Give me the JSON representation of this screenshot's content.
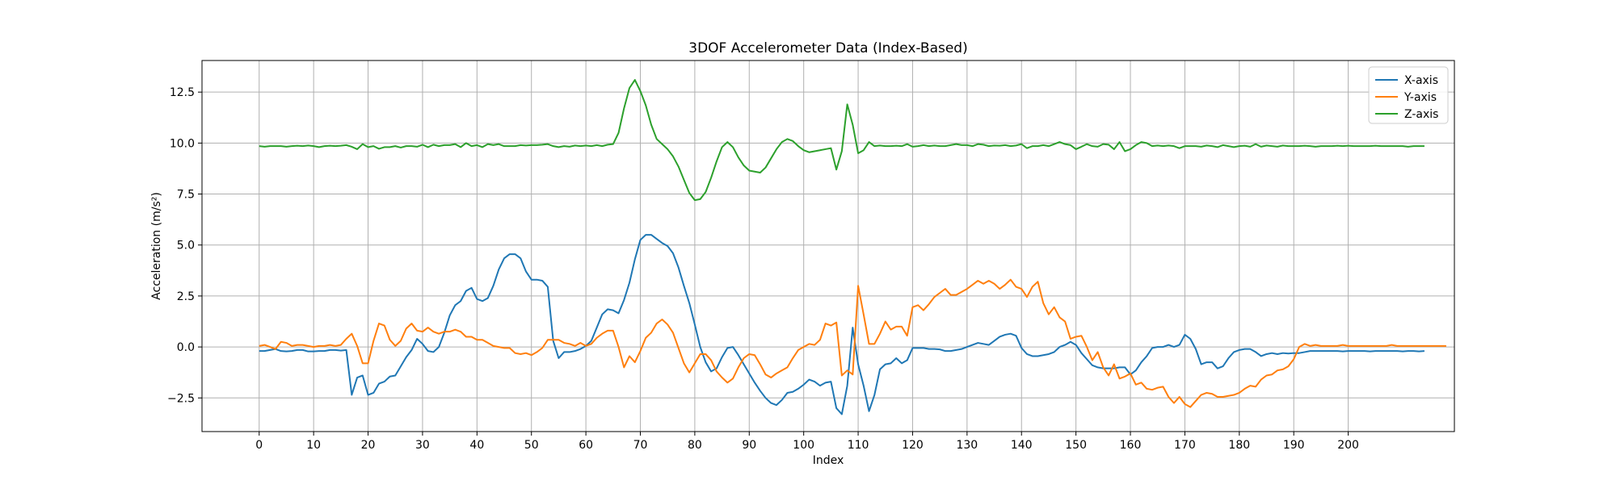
{
  "chart_data": {
    "type": "line",
    "title": "3DOF Accelerometer Data (Index-Based)",
    "xlabel": "Index",
    "ylabel": "Acceleration (m/s²)",
    "xlim": [
      -10.5,
      219.5
    ],
    "ylim": [
      -4.15,
      14.05
    ],
    "xticks": [
      0,
      10,
      20,
      30,
      40,
      50,
      60,
      70,
      80,
      90,
      100,
      110,
      120,
      130,
      140,
      150,
      160,
      170,
      180,
      190,
      200
    ],
    "yticks": [
      -2.5,
      0.0,
      2.5,
      5.0,
      7.5,
      10.0,
      12.5
    ],
    "ytick_labels": [
      "−2.5",
      "0.0",
      "2.5",
      "5.0",
      "7.5",
      "10.0",
      "12.5"
    ],
    "grid": true,
    "legend_position": "top-right",
    "series": [
      {
        "name": "X-axis",
        "color": "#1f77b4",
        "values": [
          -0.2,
          -0.2,
          -0.15,
          -0.1,
          -0.2,
          -0.22,
          -0.2,
          -0.15,
          -0.15,
          -0.22,
          -0.22,
          -0.2,
          -0.2,
          -0.15,
          -0.15,
          -0.18,
          -0.15,
          -2.35,
          -1.5,
          -1.4,
          -2.35,
          -2.25,
          -1.8,
          -1.7,
          -1.45,
          -1.4,
          -0.95,
          -0.5,
          -0.15,
          0.4,
          0.15,
          -0.2,
          -0.25,
          0.0,
          0.7,
          1.55,
          2.05,
          2.25,
          2.75,
          2.9,
          2.35,
          2.25,
          2.4,
          3.0,
          3.8,
          4.35,
          4.55,
          4.55,
          4.35,
          3.7,
          3.3,
          3.3,
          3.25,
          2.95,
          0.3,
          -0.55,
          -0.25,
          -0.25,
          -0.2,
          -0.1,
          0.05,
          0.3,
          0.95,
          1.6,
          1.85,
          1.8,
          1.65,
          2.3,
          3.15,
          4.3,
          5.25,
          5.5,
          5.5,
          5.3,
          5.1,
          4.95,
          4.6,
          3.9,
          3.0,
          2.15,
          1.1,
          0.0,
          -0.75,
          -1.2,
          -1.05,
          -0.5,
          -0.05,
          0.0,
          -0.4,
          -0.85,
          -1.3,
          -1.75,
          -2.15,
          -2.5,
          -2.75,
          -2.85,
          -2.6,
          -2.25,
          -2.2,
          -2.05,
          -1.85,
          -1.6,
          -1.7,
          -1.9,
          -1.75,
          -1.7,
          -3.0,
          -3.3,
          -1.9,
          0.95,
          -0.85,
          -1.9,
          -3.15,
          -2.35,
          -1.1,
          -0.85,
          -0.8,
          -0.55,
          -0.8,
          -0.65,
          -0.05,
          -0.05,
          -0.05,
          -0.1,
          -0.1,
          -0.12,
          -0.2,
          -0.2,
          -0.15,
          -0.1,
          0.0,
          0.1,
          0.2,
          0.15,
          0.1,
          0.3,
          0.5,
          0.6,
          0.65,
          0.55,
          -0.05,
          -0.35,
          -0.45,
          -0.45,
          -0.4,
          -0.35,
          -0.25,
          0.0,
          0.1,
          0.25,
          0.1,
          -0.3,
          -0.6,
          -0.9,
          -1.0,
          -1.05,
          -1.05,
          -1.05,
          -1.0,
          -1.0,
          -1.35,
          -1.15,
          -0.75,
          -0.45,
          -0.05,
          0.0,
          0.0,
          0.1,
          0.0,
          0.1,
          0.6,
          0.4,
          -0.1,
          -0.85,
          -0.75,
          -0.75,
          -1.05,
          -0.95,
          -0.55,
          -0.25,
          -0.15,
          -0.1,
          -0.1,
          -0.25,
          -0.45,
          -0.35,
          -0.3,
          -0.35,
          -0.3,
          -0.32,
          -0.3,
          -0.3,
          -0.25,
          -0.2,
          -0.2,
          -0.2,
          -0.2,
          -0.2,
          -0.2,
          -0.22,
          -0.2,
          -0.2,
          -0.2,
          -0.2,
          -0.22,
          -0.2,
          -0.2,
          -0.2,
          -0.2,
          -0.2,
          -0.22,
          -0.2,
          -0.2,
          -0.22,
          -0.2
        ]
      },
      {
        "name": "Y-axis",
        "color": "#ff7f0e",
        "values": [
          0.05,
          0.1,
          0.0,
          -0.1,
          0.25,
          0.2,
          0.05,
          0.1,
          0.1,
          0.05,
          0.0,
          0.05,
          0.05,
          0.1,
          0.05,
          0.1,
          0.4,
          0.65,
          0.05,
          -0.8,
          -0.8,
          0.3,
          1.15,
          1.05,
          0.35,
          0.05,
          0.3,
          0.9,
          1.15,
          0.8,
          0.75,
          0.95,
          0.75,
          0.65,
          0.75,
          0.75,
          0.85,
          0.75,
          0.5,
          0.5,
          0.35,
          0.35,
          0.2,
          0.05,
          0.0,
          -0.05,
          -0.05,
          -0.3,
          -0.35,
          -0.3,
          -0.4,
          -0.25,
          -0.05,
          0.35,
          0.35,
          0.35,
          0.2,
          0.15,
          0.05,
          0.2,
          0.05,
          0.15,
          0.45,
          0.65,
          0.8,
          0.8,
          0.0,
          -1.0,
          -0.45,
          -0.75,
          -0.2,
          0.45,
          0.7,
          1.15,
          1.35,
          1.1,
          0.7,
          -0.05,
          -0.8,
          -1.25,
          -0.8,
          -0.35,
          -0.35,
          -0.65,
          -1.2,
          -1.5,
          -1.75,
          -1.55,
          -1.0,
          -0.55,
          -0.35,
          -0.4,
          -0.85,
          -1.35,
          -1.5,
          -1.3,
          -1.15,
          -1.0,
          -0.55,
          -0.15,
          0.0,
          0.15,
          0.1,
          0.35,
          1.15,
          1.05,
          1.2,
          -1.4,
          -1.15,
          -1.35,
          3.0,
          1.6,
          0.15,
          0.15,
          0.65,
          1.25,
          0.85,
          1.0,
          1.0,
          0.55,
          1.95,
          2.05,
          1.8,
          2.1,
          2.45,
          2.65,
          2.85,
          2.55,
          2.55,
          2.7,
          2.85,
          3.05,
          3.25,
          3.1,
          3.25,
          3.1,
          2.85,
          3.05,
          3.3,
          2.95,
          2.85,
          2.45,
          2.95,
          3.2,
          2.15,
          1.6,
          1.95,
          1.45,
          1.25,
          0.4,
          0.5,
          0.55,
          0.0,
          -0.65,
          -0.25,
          -1.0,
          -1.4,
          -0.85,
          -1.55,
          -1.45,
          -1.3,
          -1.85,
          -1.75,
          -2.05,
          -2.1,
          -2.0,
          -1.95,
          -2.45,
          -2.75,
          -2.45,
          -2.8,
          -2.95,
          -2.65,
          -2.35,
          -2.25,
          -2.3,
          -2.45,
          -2.45,
          -2.4,
          -2.35,
          -2.25,
          -2.05,
          -1.9,
          -1.95,
          -1.6,
          -1.4,
          -1.35,
          -1.15,
          -1.1,
          -0.95,
          -0.6,
          0.0,
          0.15,
          0.05,
          0.1,
          0.05,
          0.05,
          0.05,
          0.05,
          0.1,
          0.05,
          0.05,
          0.05,
          0.05,
          0.05,
          0.05,
          0.05,
          0.05,
          0.1,
          0.05,
          0.05,
          0.05,
          0.05,
          0.05,
          0.05,
          0.05,
          0.05,
          0.05,
          0.05
        ]
      },
      {
        "name": "Z-axis",
        "color": "#2ca02c",
        "values": [
          9.85,
          9.82,
          9.85,
          9.85,
          9.85,
          9.82,
          9.85,
          9.87,
          9.85,
          9.88,
          9.85,
          9.8,
          9.85,
          9.87,
          9.85,
          9.87,
          9.9,
          9.82,
          9.7,
          9.95,
          9.8,
          9.85,
          9.72,
          9.8,
          9.8,
          9.85,
          9.78,
          9.85,
          9.85,
          9.82,
          9.92,
          9.8,
          9.92,
          9.85,
          9.9,
          9.9,
          9.95,
          9.8,
          10.0,
          9.85,
          9.9,
          9.8,
          9.95,
          9.9,
          9.95,
          9.85,
          9.85,
          9.85,
          9.9,
          9.88,
          9.9,
          9.9,
          9.92,
          9.95,
          9.85,
          9.8,
          9.85,
          9.82,
          9.88,
          9.85,
          9.88,
          9.85,
          9.9,
          9.85,
          9.92,
          9.95,
          10.5,
          11.7,
          12.7,
          13.1,
          12.55,
          11.85,
          10.9,
          10.2,
          9.95,
          9.7,
          9.35,
          8.85,
          8.2,
          7.55,
          7.2,
          7.25,
          7.6,
          8.3,
          9.1,
          9.8,
          10.05,
          9.8,
          9.3,
          8.9,
          8.65,
          8.6,
          8.55,
          8.8,
          9.25,
          9.7,
          10.05,
          10.2,
          10.1,
          9.85,
          9.65,
          9.55,
          9.6,
          9.65,
          9.7,
          9.75,
          8.7,
          9.6,
          11.9,
          10.9,
          9.5,
          9.65,
          10.05,
          9.85,
          9.88,
          9.85,
          9.85,
          9.87,
          9.85,
          9.95,
          9.82,
          9.85,
          9.9,
          9.85,
          9.88,
          9.85,
          9.85,
          9.9,
          9.95,
          9.9,
          9.9,
          9.85,
          9.95,
          9.92,
          9.85,
          9.88,
          9.87,
          9.9,
          9.85,
          9.88,
          9.95,
          9.75,
          9.85,
          9.85,
          9.9,
          9.85,
          9.95,
          10.05,
          9.95,
          9.9,
          9.7,
          9.82,
          9.95,
          9.85,
          9.82,
          9.95,
          9.92,
          9.7,
          10.05,
          9.6,
          9.7,
          9.9,
          10.05,
          10.0,
          9.85,
          9.88,
          9.85,
          9.88,
          9.85,
          9.75,
          9.85,
          9.85,
          9.85,
          9.82,
          9.88,
          9.85,
          9.8,
          9.9,
          9.85,
          9.8,
          9.85,
          9.87,
          9.82,
          9.95,
          9.82,
          9.88,
          9.85,
          9.82,
          9.88,
          9.85,
          9.85,
          9.85,
          9.87,
          9.85,
          9.82,
          9.85,
          9.85,
          9.85,
          9.87,
          9.85,
          9.87,
          9.85,
          9.85,
          9.85,
          9.85,
          9.87,
          9.85,
          9.85,
          9.85,
          9.85,
          9.85,
          9.82,
          9.85,
          9.85,
          9.85
        ]
      }
    ]
  }
}
